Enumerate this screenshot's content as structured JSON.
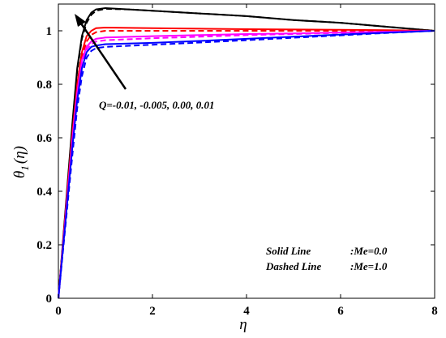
{
  "chart_data": {
    "type": "line",
    "title": "",
    "xlabel": "η",
    "ylabel_main": "θ",
    "ylabel_sub": "1",
    "ylabel_arg": "(η)",
    "xlim": [
      0,
      8
    ],
    "ylim": [
      0,
      1.1
    ],
    "xticks": [
      0,
      2,
      4,
      6,
      8
    ],
    "yticks": [
      0,
      0.2,
      0.4,
      0.6,
      0.8,
      1
    ],
    "ytick_labels": [
      "0",
      "0.2",
      "0.4",
      "0.6",
      "0.8",
      "1"
    ],
    "xtick_labels": [
      "0",
      "2",
      "4",
      "6",
      "8"
    ],
    "grid": false,
    "annotation": "Q=-0.01, -0.005, 0.00, 0.01",
    "legend": {
      "placement": "bottom-right",
      "solid_label": "Solid Line",
      "solid_value": ":Me=0.0",
      "dashed_label": "Dashed Line",
      "dashed_value": ":Me=1.0"
    },
    "series": [
      {
        "color": "#000000",
        "dash": false,
        "values": [
          [
            0,
            0
          ],
          [
            0.1,
            0.22
          ],
          [
            0.2,
            0.44
          ],
          [
            0.3,
            0.66
          ],
          [
            0.4,
            0.86
          ],
          [
            0.5,
            0.98
          ],
          [
            0.6,
            1.04
          ],
          [
            0.7,
            1.068
          ],
          [
            0.8,
            1.08
          ],
          [
            1.0,
            1.085
          ],
          [
            1.5,
            1.08
          ],
          [
            2,
            1.075
          ],
          [
            3,
            1.065
          ],
          [
            4,
            1.055
          ],
          [
            5,
            1.04
          ],
          [
            6,
            1.03
          ],
          [
            7,
            1.015
          ],
          [
            8,
            1.0
          ]
        ]
      },
      {
        "color": "#000000",
        "dash": true,
        "values": [
          [
            0,
            0
          ],
          [
            0.1,
            0.21
          ],
          [
            0.2,
            0.43
          ],
          [
            0.3,
            0.65
          ],
          [
            0.4,
            0.85
          ],
          [
            0.5,
            0.97
          ],
          [
            0.6,
            1.03
          ],
          [
            0.7,
            1.06
          ],
          [
            0.8,
            1.075
          ],
          [
            1.0,
            1.082
          ],
          [
            1.5,
            1.08
          ],
          [
            2,
            1.075
          ],
          [
            3,
            1.065
          ],
          [
            4,
            1.055
          ],
          [
            5,
            1.04
          ],
          [
            6,
            1.03
          ],
          [
            7,
            1.015
          ],
          [
            8,
            1.0
          ]
        ]
      },
      {
        "color": "#ff0000",
        "dash": false,
        "values": [
          [
            0,
            0
          ],
          [
            0.1,
            0.21
          ],
          [
            0.2,
            0.42
          ],
          [
            0.3,
            0.62
          ],
          [
            0.4,
            0.8
          ],
          [
            0.5,
            0.92
          ],
          [
            0.6,
            0.98
          ],
          [
            0.7,
            1.0
          ],
          [
            0.8,
            1.01
          ],
          [
            1.0,
            1.012
          ],
          [
            2,
            1.01
          ],
          [
            3,
            1.008
          ],
          [
            4,
            1.006
          ],
          [
            5,
            1.005
          ],
          [
            6,
            1.004
          ],
          [
            7,
            1.002
          ],
          [
            8,
            1.0
          ]
        ]
      },
      {
        "color": "#ff0000",
        "dash": true,
        "values": [
          [
            0,
            0
          ],
          [
            0.1,
            0.2
          ],
          [
            0.2,
            0.4
          ],
          [
            0.3,
            0.6
          ],
          [
            0.4,
            0.78
          ],
          [
            0.5,
            0.9
          ],
          [
            0.6,
            0.96
          ],
          [
            0.7,
            0.985
          ],
          [
            0.8,
            0.995
          ],
          [
            1.0,
            1.0
          ],
          [
            2,
            1.0
          ],
          [
            4,
            1.0
          ],
          [
            6,
            1.0
          ],
          [
            8,
            1.0
          ]
        ]
      },
      {
        "color": "#ff00ff",
        "dash": false,
        "values": [
          [
            0,
            0
          ],
          [
            0.1,
            0.2
          ],
          [
            0.2,
            0.4
          ],
          [
            0.3,
            0.6
          ],
          [
            0.4,
            0.77
          ],
          [
            0.5,
            0.89
          ],
          [
            0.6,
            0.94
          ],
          [
            0.7,
            0.96
          ],
          [
            0.8,
            0.97
          ],
          [
            1.0,
            0.975
          ],
          [
            2,
            0.98
          ],
          [
            3,
            0.984
          ],
          [
            4,
            0.988
          ],
          [
            5,
            0.99
          ],
          [
            6,
            0.994
          ],
          [
            7,
            0.997
          ],
          [
            8,
            1.0
          ]
        ]
      },
      {
        "color": "#ff00ff",
        "dash": true,
        "values": [
          [
            0,
            0
          ],
          [
            0.1,
            0.19
          ],
          [
            0.2,
            0.38
          ],
          [
            0.3,
            0.58
          ],
          [
            0.4,
            0.75
          ],
          [
            0.5,
            0.87
          ],
          [
            0.6,
            0.93
          ],
          [
            0.7,
            0.95
          ],
          [
            0.8,
            0.96
          ],
          [
            1.0,
            0.965
          ],
          [
            2,
            0.972
          ],
          [
            3,
            0.978
          ],
          [
            4,
            0.984
          ],
          [
            5,
            0.988
          ],
          [
            6,
            0.992
          ],
          [
            7,
            0.996
          ],
          [
            8,
            1.0
          ]
        ]
      },
      {
        "color": "#0000ff",
        "dash": false,
        "values": [
          [
            0,
            0
          ],
          [
            0.1,
            0.19
          ],
          [
            0.2,
            0.38
          ],
          [
            0.3,
            0.57
          ],
          [
            0.4,
            0.74
          ],
          [
            0.5,
            0.86
          ],
          [
            0.6,
            0.92
          ],
          [
            0.7,
            0.94
          ],
          [
            0.8,
            0.945
          ],
          [
            1.0,
            0.95
          ],
          [
            2,
            0.955
          ],
          [
            3,
            0.962
          ],
          [
            4,
            0.97
          ],
          [
            5,
            0.978
          ],
          [
            6,
            0.986
          ],
          [
            7,
            0.993
          ],
          [
            8,
            1.0
          ]
        ]
      },
      {
        "color": "#0000ff",
        "dash": true,
        "values": [
          [
            0,
            0
          ],
          [
            0.1,
            0.18
          ],
          [
            0.2,
            0.36
          ],
          [
            0.3,
            0.54
          ],
          [
            0.4,
            0.71
          ],
          [
            0.5,
            0.83
          ],
          [
            0.6,
            0.9
          ],
          [
            0.7,
            0.925
          ],
          [
            0.8,
            0.935
          ],
          [
            1.0,
            0.94
          ],
          [
            2,
            0.948
          ],
          [
            3,
            0.956
          ],
          [
            4,
            0.965
          ],
          [
            5,
            0.974
          ],
          [
            6,
            0.983
          ],
          [
            7,
            0.992
          ],
          [
            8,
            1.0
          ]
        ]
      }
    ]
  }
}
